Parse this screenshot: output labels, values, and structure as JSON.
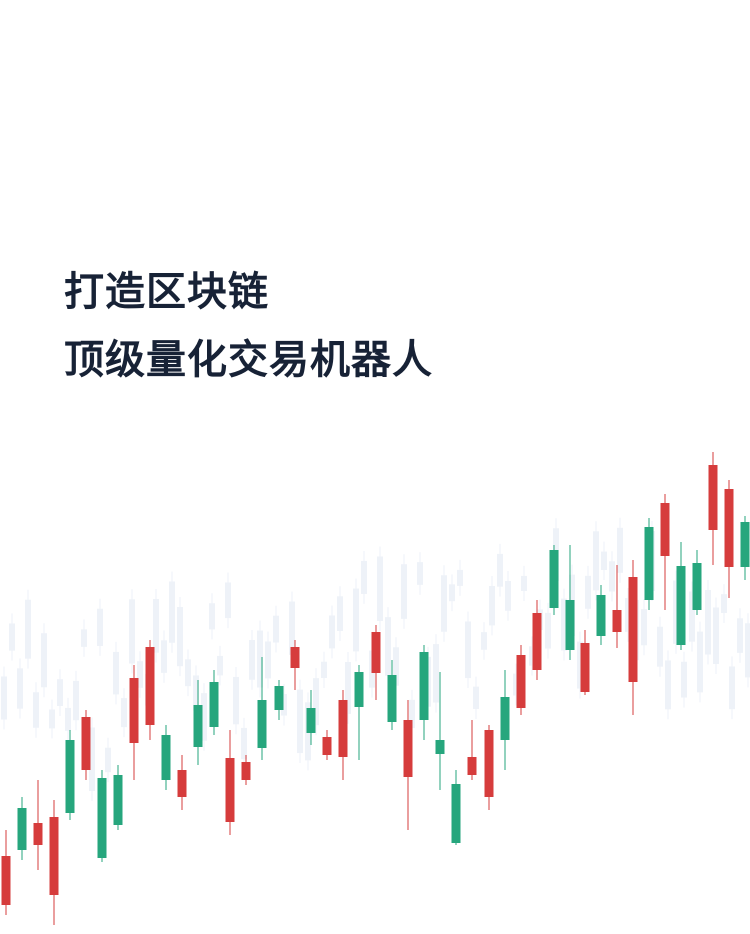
{
  "header": {
    "title_lines": [
      "打造区块链",
      "顶级量化交易机器人"
    ]
  }
}
